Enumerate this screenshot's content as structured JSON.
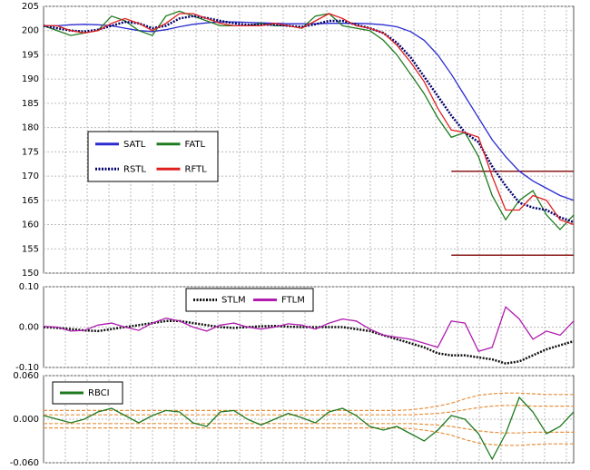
{
  "chart_data": [
    {
      "type": "line",
      "ylim": [
        150,
        205
      ],
      "yticks": [
        150,
        155,
        160,
        165,
        170,
        175,
        180,
        185,
        190,
        195,
        200,
        205
      ],
      "grid": true,
      "hlines": [
        171,
        153.7
      ],
      "hline_color": "#8b1a1a",
      "series": [
        {
          "name": "SATL",
          "color": "#2b2bd0",
          "style": "solid",
          "values": [
            201,
            201,
            201.2,
            201.3,
            201.2,
            201,
            200.5,
            200,
            199.8,
            200.2,
            200.8,
            201.3,
            201.6,
            201.8,
            201.8,
            201.7,
            201.6,
            201.5,
            201.4,
            201.4,
            201.4,
            201.5,
            201.5,
            201.5,
            201.4,
            201.2,
            200.8,
            199.8,
            198,
            195,
            191,
            186.5,
            182,
            177.5,
            174,
            171,
            169,
            167.5,
            166,
            165
          ]
        },
        {
          "name": "FATL",
          "color": "#1f7a1f",
          "style": "solid",
          "values": [
            201,
            200,
            199,
            199.5,
            200,
            203,
            202,
            200,
            199,
            203,
            204,
            203,
            202,
            201,
            201,
            201,
            201.5,
            201,
            201,
            200.5,
            203,
            203.5,
            201,
            200.5,
            200,
            198,
            195,
            191,
            187,
            182,
            178,
            179,
            174,
            166,
            161,
            165,
            167,
            162,
            159,
            162
          ]
        },
        {
          "name": "RSTL",
          "color": "#00006e",
          "style": "dotted",
          "values": [
            201,
            200.5,
            200,
            199.8,
            200.2,
            201,
            201.8,
            201.5,
            200.5,
            201,
            202.5,
            203,
            202.6,
            202,
            201.5,
            201.2,
            201.2,
            201.2,
            201,
            200.8,
            201.3,
            202,
            202,
            201.2,
            200.5,
            199.5,
            197.5,
            194.5,
            190.5,
            186.5,
            182.5,
            179,
            177,
            172,
            168,
            164.5,
            163.5,
            163,
            161.5,
            160.5
          ]
        },
        {
          "name": "RFTL",
          "color": "#e02020",
          "style": "solid",
          "values": [
            201,
            201,
            200,
            199.5,
            200,
            201.5,
            202.5,
            201.5,
            200,
            201.5,
            203.5,
            203.5,
            202.5,
            201.5,
            201,
            201,
            201,
            201.5,
            201,
            200.5,
            202,
            203.5,
            202.5,
            201,
            200.5,
            199.5,
            197,
            193.5,
            189.5,
            184,
            179.5,
            179,
            178,
            170,
            163,
            163,
            166,
            165,
            161,
            160
          ]
        }
      ]
    },
    {
      "type": "line",
      "ylim": [
        -0.1,
        0.1
      ],
      "yticks": [
        {
          "value": -0.1,
          "label": "-0.10"
        },
        {
          "value": 0,
          "label": "0.00"
        },
        {
          "value": 0.1,
          "label": "0.10"
        }
      ],
      "grid": true,
      "series": [
        {
          "name": "STLM",
          "color": "#111111",
          "style": "dotted",
          "values": [
            0,
            -0.002,
            -0.005,
            -0.008,
            -0.01,
            -0.005,
            0,
            0.005,
            0.01,
            0.015,
            0.015,
            0.01,
            0.005,
            0,
            -0.002,
            0,
            0.002,
            0.003,
            0.001,
            0,
            0,
            0,
            0,
            -0.005,
            -0.01,
            -0.02,
            -0.03,
            -0.04,
            -0.05,
            -0.065,
            -0.07,
            -0.07,
            -0.075,
            -0.08,
            -0.09,
            -0.085,
            -0.07,
            -0.055,
            -0.045,
            -0.035
          ]
        },
        {
          "name": "FTLM",
          "color": "#b01cb0",
          "style": "solid",
          "values": [
            0.002,
            0,
            -0.01,
            -0.008,
            0.005,
            0.01,
            0,
            -0.008,
            0.01,
            0.022,
            0.015,
            0,
            -0.01,
            0.005,
            0.01,
            0,
            -0.005,
            0,
            0.008,
            0.005,
            -0.005,
            0.01,
            0.02,
            0.015,
            -0.005,
            -0.02,
            -0.025,
            -0.03,
            -0.04,
            -0.05,
            0.015,
            0.01,
            -0.06,
            -0.05,
            0.05,
            0.02,
            -0.03,
            -0.01,
            -0.02,
            0.015
          ]
        }
      ]
    },
    {
      "type": "line",
      "ylim": [
        -0.06,
        0.06
      ],
      "yticks": [
        {
          "value": -0.06,
          "label": "-0.060"
        },
        {
          "value": 0,
          "label": "0.000"
        },
        {
          "value": 0.06,
          "label": "0.060"
        }
      ],
      "grid": true,
      "band_color": "#e8903c",
      "bands": [
        [
          0.012,
          0.012,
          0.012,
          0.012,
          0.012,
          0.012,
          0.012,
          0.012,
          0.012,
          0.012,
          0.012,
          0.012,
          0.012,
          0.012,
          0.012,
          0.012,
          0.012,
          0.012,
          0.012,
          0.012,
          0.012,
          0.012,
          0.012,
          0.012,
          0.012,
          0.012,
          0.012,
          0.013,
          0.015,
          0.018,
          0.022,
          0.028,
          0.033,
          0.035,
          0.036,
          0.036,
          0.035,
          0.034,
          0.034,
          0.034
        ],
        [
          0.006,
          0.006,
          0.006,
          0.006,
          0.006,
          0.006,
          0.006,
          0.006,
          0.006,
          0.006,
          0.006,
          0.006,
          0.006,
          0.006,
          0.006,
          0.006,
          0.006,
          0.006,
          0.006,
          0.006,
          0.006,
          0.006,
          0.006,
          0.006,
          0.006,
          0.006,
          0.006,
          0.006,
          0.007,
          0.008,
          0.01,
          0.013,
          0.016,
          0.018,
          0.019,
          0.019,
          0.018,
          0.018,
          0.018,
          0.018
        ],
        [
          -0.006,
          -0.006,
          -0.006,
          -0.006,
          -0.006,
          -0.006,
          -0.006,
          -0.006,
          -0.006,
          -0.006,
          -0.006,
          -0.006,
          -0.006,
          -0.006,
          -0.006,
          -0.006,
          -0.006,
          -0.006,
          -0.006,
          -0.006,
          -0.006,
          -0.006,
          -0.006,
          -0.006,
          -0.006,
          -0.006,
          -0.006,
          -0.006,
          -0.007,
          -0.008,
          -0.01,
          -0.013,
          -0.016,
          -0.018,
          -0.019,
          -0.019,
          -0.018,
          -0.018,
          -0.018,
          -0.018
        ],
        [
          -0.012,
          -0.012,
          -0.012,
          -0.012,
          -0.012,
          -0.012,
          -0.012,
          -0.012,
          -0.012,
          -0.012,
          -0.012,
          -0.012,
          -0.012,
          -0.012,
          -0.012,
          -0.012,
          -0.012,
          -0.012,
          -0.012,
          -0.012,
          -0.012,
          -0.012,
          -0.012,
          -0.012,
          -0.012,
          -0.012,
          -0.012,
          -0.013,
          -0.015,
          -0.018,
          -0.022,
          -0.028,
          -0.033,
          -0.035,
          -0.036,
          -0.036,
          -0.035,
          -0.034,
          -0.034,
          -0.034
        ]
      ],
      "series": [
        {
          "name": "RBCI",
          "color": "#1f7a1f",
          "style": "solid",
          "values": [
            0.005,
            0,
            -0.005,
            0,
            0.01,
            0.015,
            0.005,
            -0.005,
            0.005,
            0.012,
            0.01,
            -0.005,
            -0.01,
            0.01,
            0.012,
            0,
            -0.008,
            0,
            0.008,
            0.002,
            -0.005,
            0.01,
            0.015,
            0.005,
            -0.01,
            -0.015,
            -0.01,
            -0.02,
            -0.03,
            -0.015,
            0.005,
            0,
            -0.02,
            -0.055,
            -0.02,
            0.03,
            0.01,
            -0.02,
            -0.01,
            0.01
          ]
        }
      ]
    }
  ]
}
